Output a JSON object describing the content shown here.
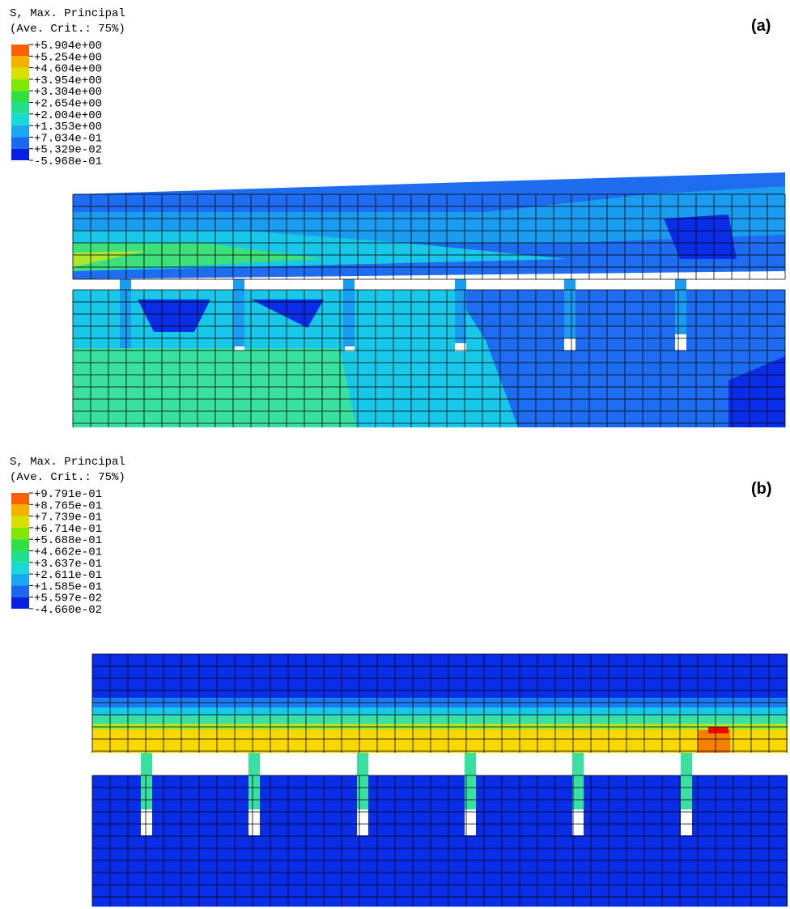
{
  "panels": [
    {
      "label": "(a)",
      "legend": {
        "title": "S, Max. Principal",
        "subtitle": "(Ave. Crit.: 75%)",
        "levels": [
          "+5.904e+00",
          "+5.254e+00",
          "+4.604e+00",
          "+3.954e+00",
          "+3.304e+00",
          "+2.654e+00",
          "+2.004e+00",
          "+1.353e+00",
          "+7.034e-01",
          "+5.329e-02",
          "-5.968e-01"
        ]
      }
    },
    {
      "label": "(b)",
      "legend": {
        "title": "S, Max. Principal",
        "subtitle": "(Ave. Crit.: 75%)",
        "levels": [
          "+9.791e-01",
          "+8.765e-01",
          "+7.739e-01",
          "+6.714e-01",
          "+5.688e-01",
          "+4.662e-01",
          "+3.637e-01",
          "+2.611e-01",
          "+1.585e-01",
          "+5.597e-02",
          "-4.660e-02"
        ]
      }
    }
  ]
}
